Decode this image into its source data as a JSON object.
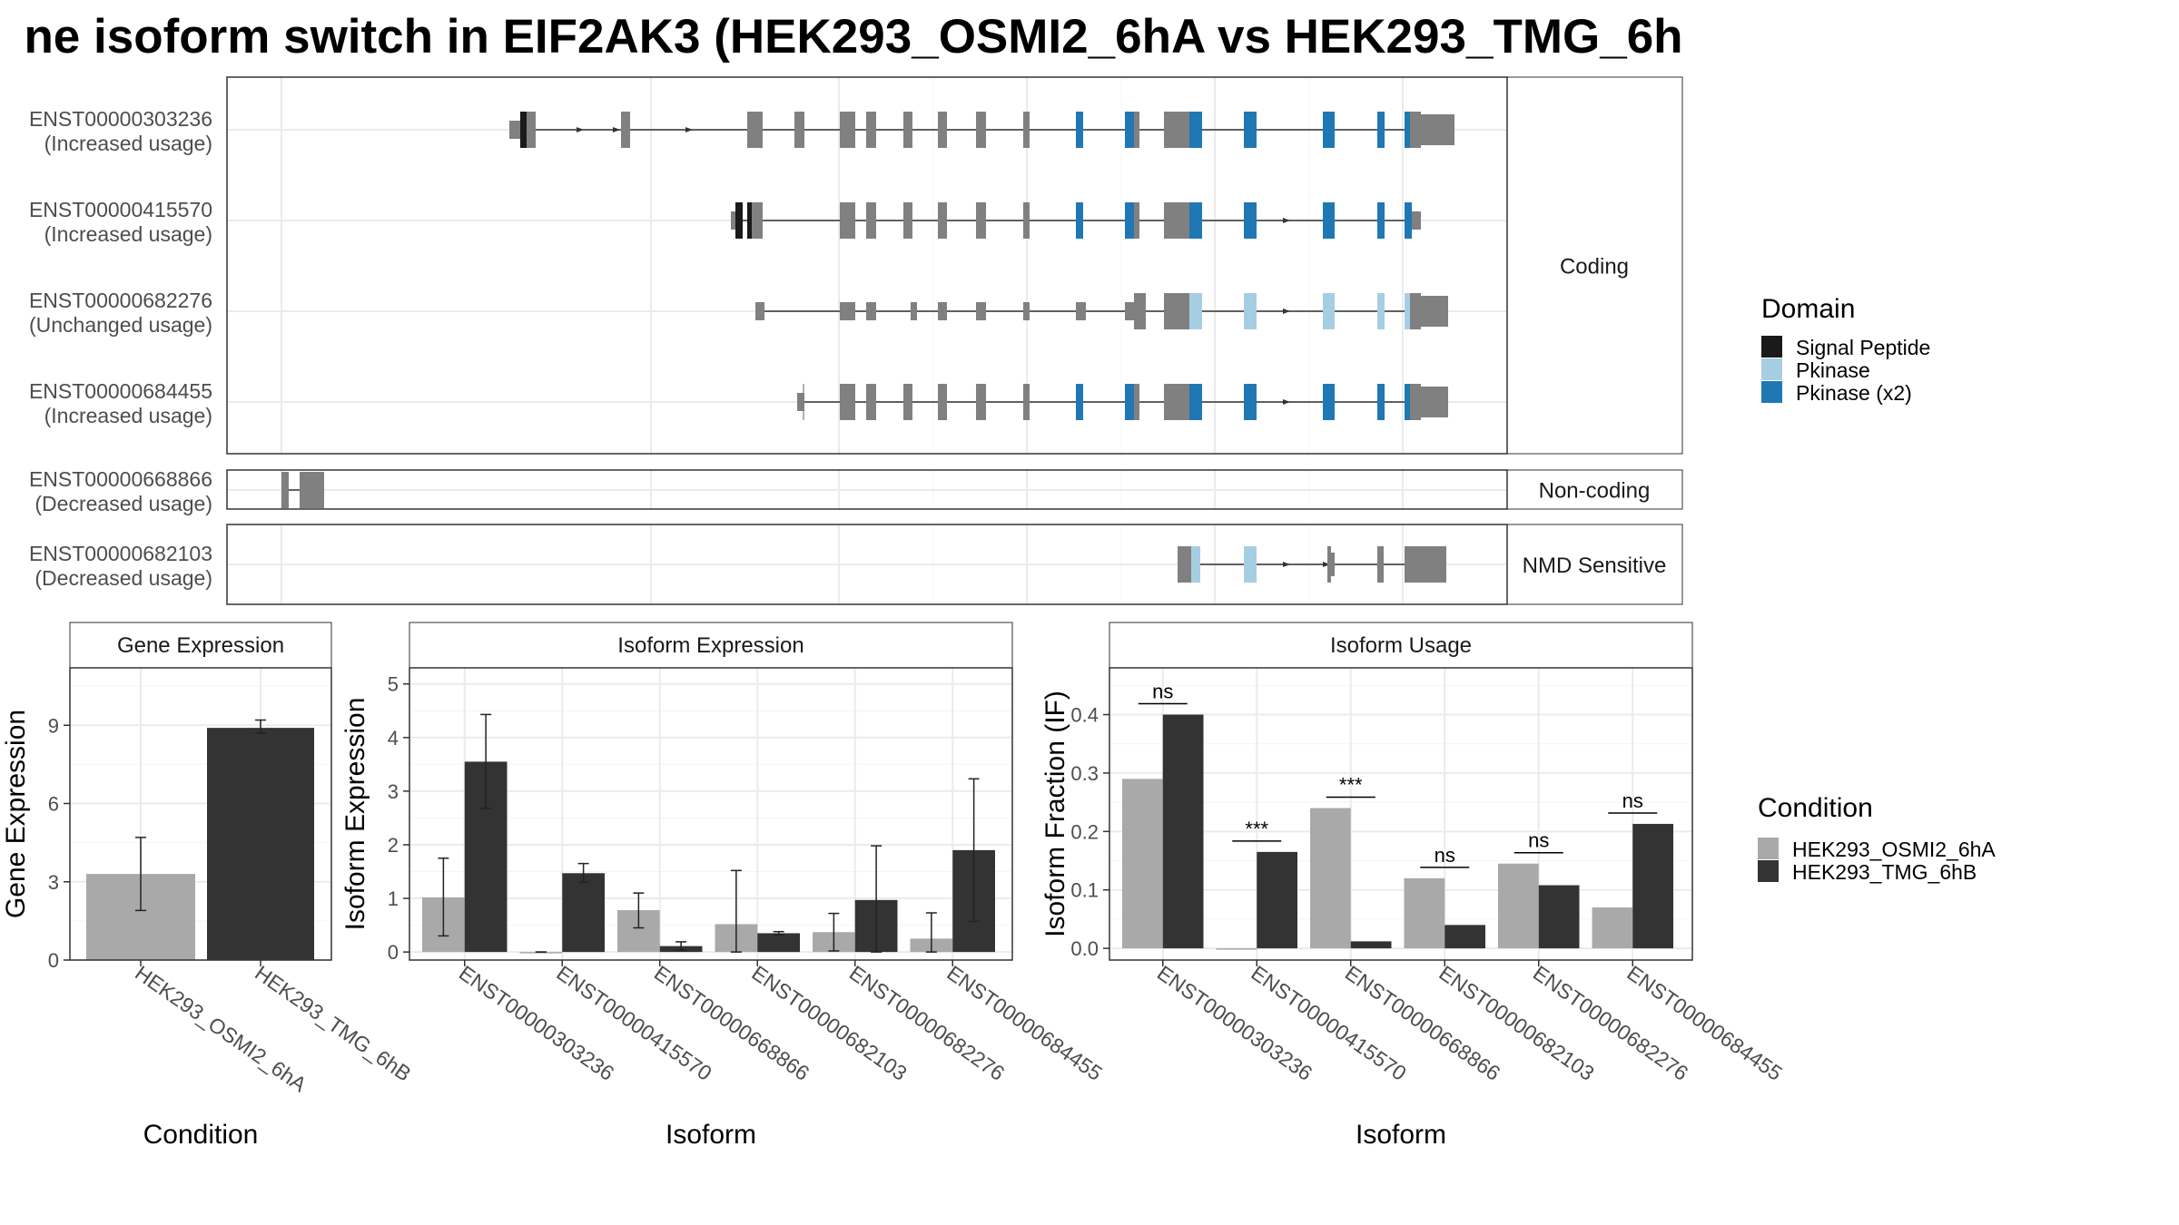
{
  "title": "ne isoform switch in EIF2AK3 (HEK293_OSMI2_6hA vs HEK293_TMG_6h",
  "transcript_panel": {
    "facets": [
      {
        "label": "Coding",
        "transcripts": [
          {
            "id": "ENST00000303236",
            "usage": "(Increased usage)"
          },
          {
            "id": "ENST00000415570",
            "usage": "(Increased usage)"
          },
          {
            "id": "ENST00000682276",
            "usage": "(Unchanged usage)"
          },
          {
            "id": "ENST00000684455",
            "usage": "(Increased usage)"
          }
        ]
      },
      {
        "label": "Non-coding",
        "transcripts": [
          {
            "id": "ENST00000668866",
            "usage": "(Decreased usage)"
          }
        ]
      },
      {
        "label": "NMD Sensitive",
        "transcripts": [
          {
            "id": "ENST00000682103",
            "usage": "(Decreased usage)"
          }
        ]
      }
    ]
  },
  "domain_legend": {
    "title": "Domain",
    "items": [
      {
        "label": "Signal Peptide",
        "color": "#1a1a1a"
      },
      {
        "label": "Pkinase",
        "color": "#a6cee3"
      },
      {
        "label": "Pkinase (x2)",
        "color": "#1f78b4"
      }
    ]
  },
  "condition_legend": {
    "title": "Condition",
    "items": [
      {
        "label": "HEK293_OSMI2_6hA",
        "color": "#a9a9a9"
      },
      {
        "label": "HEK293_TMG_6hB",
        "color": "#333333"
      }
    ]
  },
  "chart_data": [
    {
      "type": "bar",
      "title": "Gene Expression",
      "xlabel": "Condition",
      "ylabel": "Gene Expression",
      "ylim": [
        0,
        11.2
      ],
      "yticks": [
        0,
        3,
        6,
        9
      ],
      "categories": [
        "HEK293_OSMI2_6hA",
        "HEK293_TMG_6hB"
      ],
      "values": [
        3.3,
        8.9
      ],
      "errors": [
        [
          1.9,
          4.7
        ],
        [
          8.7,
          9.2
        ]
      ]
    },
    {
      "type": "bar",
      "title": "Isoform Expression",
      "xlabel": "Isoform",
      "ylabel": "Isoform Expression",
      "ylim": [
        -0.15,
        5.3
      ],
      "yticks": [
        0,
        1,
        2,
        3,
        4,
        5
      ],
      "categories": [
        "ENST00000303236",
        "ENST00000415570",
        "ENST00000668866",
        "ENST00000682103",
        "ENST00000682276",
        "ENST00000684455"
      ],
      "series": [
        {
          "name": "HEK293_OSMI2_6hA",
          "values": [
            1.02,
            0.0,
            0.78,
            0.52,
            0.37,
            0.25
          ],
          "errors": [
            [
              0.3,
              1.75
            ],
            [
              0.0,
              0.0
            ],
            [
              0.45,
              1.1
            ],
            [
              0.0,
              1.52
            ],
            [
              0.02,
              0.72
            ],
            [
              0.0,
              0.73
            ]
          ]
        },
        {
          "name": "HEK293_TMG_6hB",
          "values": [
            3.55,
            1.47,
            0.11,
            0.35,
            0.97,
            1.9
          ],
          "errors": [
            [
              2.68,
              4.43
            ],
            [
              1.3,
              1.65
            ],
            [
              0.03,
              0.19
            ],
            [
              0.32,
              0.38
            ],
            [
              0.0,
              1.98
            ],
            [
              0.57,
              3.23
            ]
          ]
        }
      ]
    },
    {
      "type": "bar",
      "title": "Isoform Usage",
      "xlabel": "Isoform",
      "ylabel": "Isoform Fraction (IF)",
      "ylim": [
        -0.02,
        0.48
      ],
      "yticks": [
        0.0,
        0.1,
        0.2,
        0.3,
        0.4
      ],
      "ytick_labels": [
        "0.0",
        "0.1",
        "0.2",
        "0.3",
        "0.4"
      ],
      "categories": [
        "ENST00000303236",
        "ENST00000415570",
        "ENST00000668866",
        "ENST00000682103",
        "ENST00000682276",
        "ENST00000684455"
      ],
      "series": [
        {
          "name": "HEK293_OSMI2_6hA",
          "values": [
            0.29,
            0.0,
            0.24,
            0.12,
            0.145,
            0.07
          ]
        },
        {
          "name": "HEK293_TMG_6hB",
          "values": [
            0.4,
            0.165,
            0.012,
            0.04,
            0.108,
            0.213
          ]
        }
      ],
      "significance": [
        "ns",
        "***",
        "***",
        "ns",
        "ns",
        "ns"
      ]
    }
  ]
}
